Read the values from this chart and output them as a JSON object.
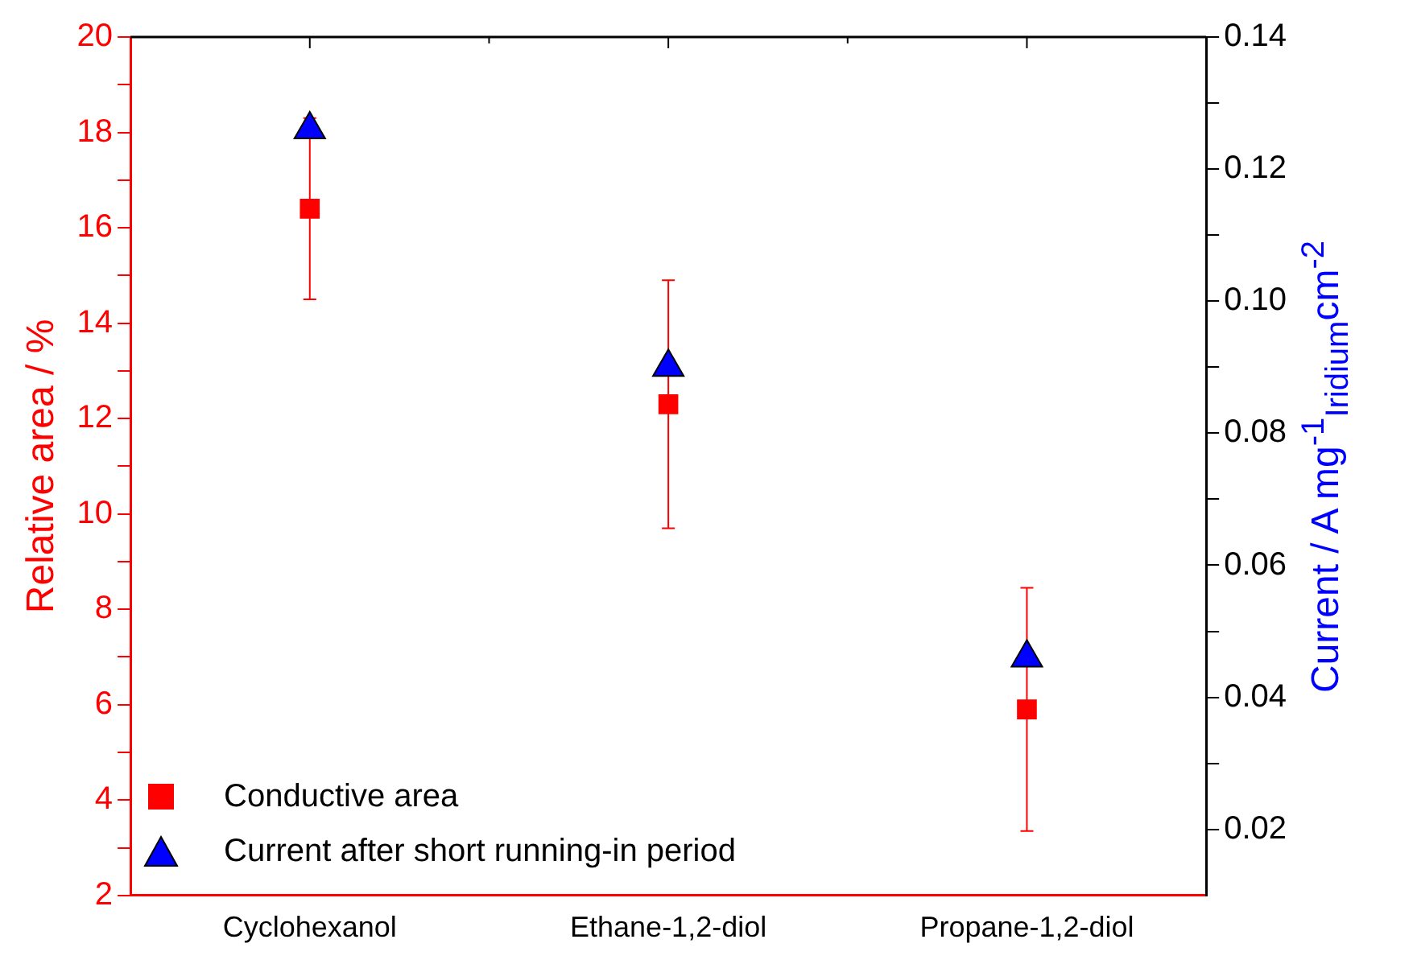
{
  "chart_data": {
    "type": "scatter",
    "categories": [
      "Cyclohexanol",
      "Ethane-1,2-diol",
      "Propane-1,2-diol"
    ],
    "ylabel": "Relative area / %",
    "y2label": "Current / A mg$^{-1}$$_{Iridium}$cm$^{-2}$",
    "ylim": [
      2,
      20
    ],
    "yticks": [
      2,
      {
        "value": 3,
        "label": null
      },
      4,
      {
        "value": 5,
        "label": null
      },
      6,
      {
        "value": 7,
        "label": null
      },
      8,
      {
        "value": 9,
        "label": null
      },
      10,
      {
        "value": 11,
        "label": null
      },
      12,
      {
        "value": 13,
        "label": null
      },
      14,
      {
        "value": 15,
        "label": null
      },
      16,
      {
        "value": 17,
        "label": null
      },
      18,
      {
        "value": 19,
        "label": null
      },
      20
    ],
    "y2lim": [
      0.01,
      0.14
    ],
    "y2ticks": [
      {
        "value": 0.02,
        "label": "0.02"
      },
      {
        "value": 0.03,
        "label": null
      },
      {
        "value": 0.04,
        "label": "0.04"
      },
      {
        "value": 0.05,
        "label": null
      },
      {
        "value": 0.06,
        "label": "0.06"
      },
      {
        "value": 0.07,
        "label": null
      },
      {
        "value": 0.08,
        "label": "0.08"
      },
      {
        "value": 0.09,
        "label": null
      },
      {
        "value": 0.1,
        "label": "0.10"
      },
      {
        "value": 0.11,
        "label": null
      },
      {
        "value": 0.12,
        "label": "0.12"
      },
      {
        "value": 0.13,
        "label": null
      },
      {
        "value": 0.14,
        "label": "0.14"
      }
    ],
    "series": [
      {
        "name": "Conductive area",
        "color": "#ff0000",
        "marker": "square",
        "values": [
          16.4,
          12.3,
          5.9
        ],
        "errors": [
          1.9,
          2.6,
          2.55
        ]
      },
      {
        "name": "Current after short running-in period",
        "color": "#0000ff",
        "marker": "triangle",
        "axis": "y2",
        "values": [
          0.126,
          0.09,
          0.046
        ]
      }
    ],
    "legend": "bottom left",
    "grid": false
  }
}
